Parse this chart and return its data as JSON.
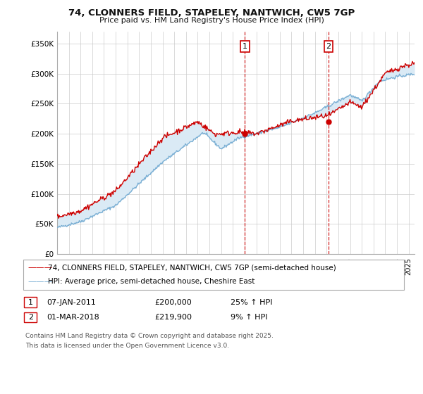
{
  "title": "74, CLONNERS FIELD, STAPELEY, NANTWICH, CW5 7GP",
  "subtitle": "Price paid vs. HM Land Registry's House Price Index (HPI)",
  "ylabel_ticks": [
    "£0",
    "£50K",
    "£100K",
    "£150K",
    "£200K",
    "£250K",
    "£300K",
    "£350K"
  ],
  "ytick_values": [
    0,
    50000,
    100000,
    150000,
    200000,
    250000,
    300000,
    350000
  ],
  "ylim": [
    0,
    370000
  ],
  "xlim_start": 1995.0,
  "xlim_end": 2025.5,
  "sale1_date": 2011.02,
  "sale1_price": 200000,
  "sale2_date": 2018.17,
  "sale2_price": 219900,
  "legend_line1": "74, CLONNERS FIELD, STAPELEY, NANTWICH, CW5 7GP (semi-detached house)",
  "legend_line2": "HPI: Average price, semi-detached house, Cheshire East",
  "footer_line1": "Contains HM Land Registry data © Crown copyright and database right 2025.",
  "footer_line2": "This data is licensed under the Open Government Licence v3.0.",
  "table_row1": [
    "1",
    "07-JAN-2011",
    "£200,000",
    "25% ↑ HPI"
  ],
  "table_row2": [
    "2",
    "01-MAR-2018",
    "£219,900",
    "9% ↑ HPI"
  ],
  "red_color": "#cc0000",
  "blue_color": "#7aafd4",
  "shade_color": "#daeaf5",
  "background_color": "#ffffff",
  "grid_color": "#cccccc",
  "title_fontsize": 9.5,
  "subtitle_fontsize": 8.0,
  "tick_fontsize": 7.5,
  "legend_fontsize": 7.5,
  "table_fontsize": 8.0,
  "footer_fontsize": 6.5
}
